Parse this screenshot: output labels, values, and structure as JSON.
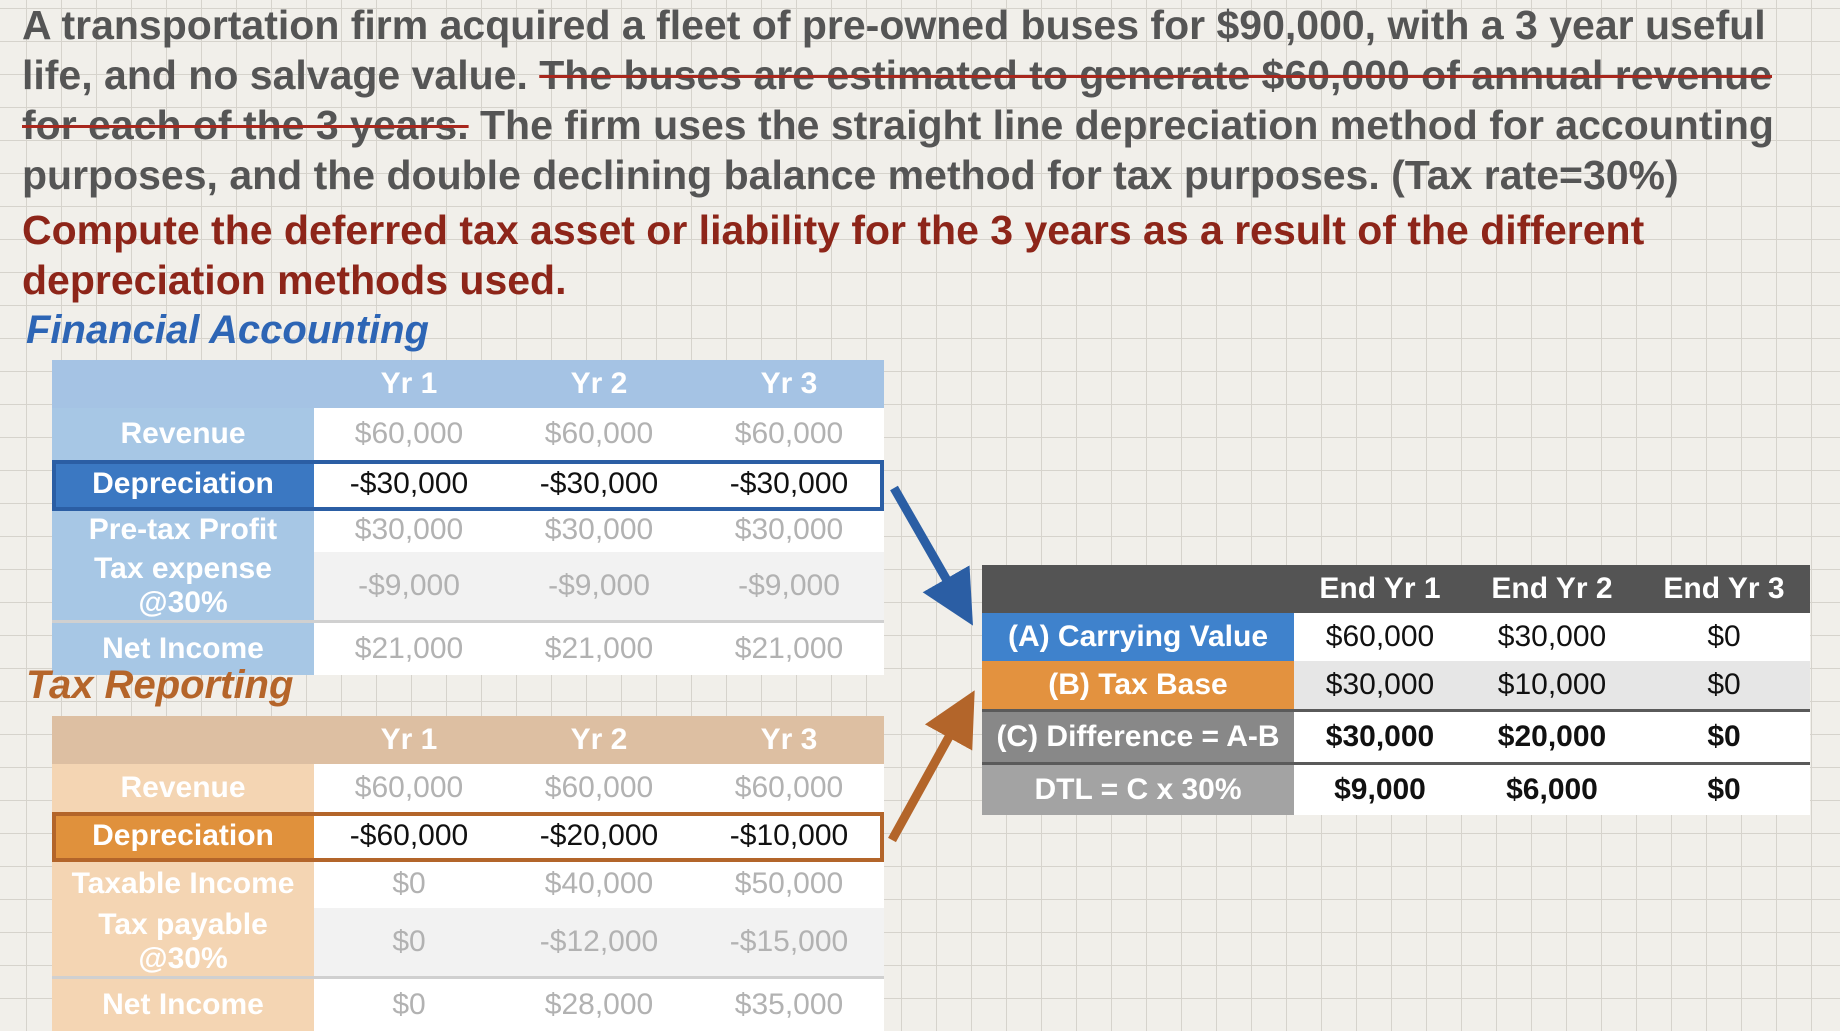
{
  "problem": {
    "intro": "A transportation firm acquired a fleet of pre-owned buses for $90,000, with a 3 year useful life, and no salvage value. ",
    "struck": "The buses are estimated to generate $60,000 of annual revenue for each of the 3 years.",
    "rest": " The firm uses the straight line depreciation method for accounting purposes, and the double declining balance method for tax purposes. (Tax rate=30%)",
    "question": "Compute the deferred tax asset or liability for the 3 years as a result of the different depreciation methods used."
  },
  "financial": {
    "title": "Financial Accounting",
    "headers": [
      "Yr 1",
      "Yr 2",
      "Yr 3"
    ],
    "rows": [
      {
        "label": "Revenue",
        "values": [
          "$60,000",
          "$60,000",
          "$60,000"
        ]
      },
      {
        "label": "Depreciation",
        "values": [
          "-$30,000",
          "-$30,000",
          "-$30,000"
        ]
      },
      {
        "label": "Pre-tax Profit",
        "values": [
          "$30,000",
          "$30,000",
          "$30,000"
        ]
      },
      {
        "label": "Tax expense  @30%",
        "values": [
          "-$9,000",
          "-$9,000",
          "-$9,000"
        ]
      },
      {
        "label": "Net Income",
        "values": [
          "$21,000",
          "$21,000",
          "$21,000"
        ]
      }
    ]
  },
  "tax": {
    "title": "Tax Reporting",
    "headers": [
      "Yr 1",
      "Yr 2",
      "Yr 3"
    ],
    "rows": [
      {
        "label": "Revenue",
        "values": [
          "$60,000",
          "$60,000",
          "$60,000"
        ]
      },
      {
        "label": "Depreciation",
        "values": [
          "-$60,000",
          "-$20,000",
          "-$10,000"
        ]
      },
      {
        "label": "Taxable Income",
        "values": [
          "$0",
          "$40,000",
          "$50,000"
        ]
      },
      {
        "label": "Tax payable  @30%",
        "values": [
          "$0",
          "-$12,000",
          "-$15,000"
        ]
      },
      {
        "label": "Net Income",
        "values": [
          "$0",
          "$28,000",
          "$35,000"
        ]
      }
    ]
  },
  "deferred": {
    "headers": [
      "End Yr 1",
      "End Yr 2",
      "End Yr 3"
    ],
    "rows": [
      {
        "label": "(A) Carrying Value",
        "values": [
          "$60,000",
          "$30,000",
          "$0"
        ]
      },
      {
        "label": "(B) Tax Base",
        "values": [
          "$30,000",
          "$10,000",
          "$0"
        ]
      },
      {
        "label": "(C) Difference = A-B",
        "values": [
          "$30,000",
          "$20,000",
          "$0"
        ]
      },
      {
        "label": "DTL = C x 30%",
        "values": [
          "$9,000",
          "$6,000",
          "$0"
        ]
      }
    ]
  },
  "colors": {
    "blue_arrow": "#2b5ea4",
    "orange_arrow": "#b3652a",
    "question_red": "#8d2519"
  }
}
